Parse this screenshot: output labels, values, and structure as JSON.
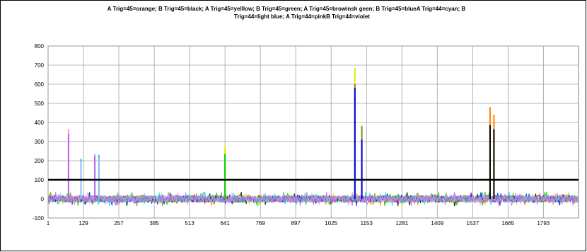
{
  "title_line1": "A Trig=45=orange; B Trig=45=black; A Trig=45=yelllow; B Trig=45=green; A Trig=45=browinsh geen; B Trig=45=blueA Trig=44=cyan; B",
  "title_line2": "Trig=44=light blue; A Trig=44=pinkB Trig=44=violet",
  "chart_data": {
    "type": "line",
    "title": "A Trig=45=orange; B Trig=45=black; A Trig=45=yelllow; B Trig=45=green; A Trig=45=browinsh geen; B Trig=45=blueA Trig=44=cyan; B Trig=44=light blue; A Trig=44=pinkB Trig=44=violet",
    "xlabel": "",
    "ylabel": "",
    "x_tick_labels": [
      "1",
      "129",
      "257",
      "385",
      "513",
      "641",
      "769",
      "897",
      "1025",
      "1153",
      "1281",
      "1409",
      "1537",
      "1665",
      "1793"
    ],
    "xlim": [
      1,
      1920
    ],
    "y_tick_labels": [
      "-100",
      "0",
      "100",
      "200",
      "300",
      "400",
      "500",
      "600",
      "700",
      "800"
    ],
    "ylim": [
      -100,
      800
    ],
    "grid": true,
    "threshold_line": {
      "y": 100,
      "color": "#000000"
    },
    "noise_band": [
      -40,
      40
    ],
    "series": [
      {
        "color": "#ff8000",
        "peaks": [
          [
            1600,
            480
          ],
          [
            1614,
            440
          ]
        ]
      },
      {
        "color": "#000000",
        "peaks": [
          [
            1600,
            385
          ],
          [
            1614,
            365
          ]
        ]
      },
      {
        "color": "#ddee00",
        "peaks": [
          [
            641,
            275
          ],
          [
            1111,
            685
          ],
          [
            1136,
            385
          ]
        ]
      },
      {
        "color": "#00cc00",
        "peaks": [
          [
            641,
            235
          ]
        ]
      },
      {
        "color": "#888833",
        "peaks": [
          [
            1111,
            600
          ],
          [
            1136,
            380
          ]
        ]
      },
      {
        "color": "#0000ee",
        "peaks": [
          [
            1111,
            580
          ],
          [
            1136,
            310
          ]
        ]
      },
      {
        "color": "#00dddd",
        "peaks": [
          [
            120,
            210
          ],
          [
            185,
            230
          ]
        ]
      },
      {
        "color": "#88bbff",
        "peaks": [
          [
            120,
            195
          ],
          [
            185,
            215
          ]
        ]
      },
      {
        "color": "#ff88cc",
        "peaks": [
          [
            75,
            365
          ],
          [
            170,
            235
          ]
        ]
      },
      {
        "color": "#bb66ee",
        "peaks": [
          [
            75,
            340
          ],
          [
            170,
            225
          ]
        ]
      }
    ]
  }
}
